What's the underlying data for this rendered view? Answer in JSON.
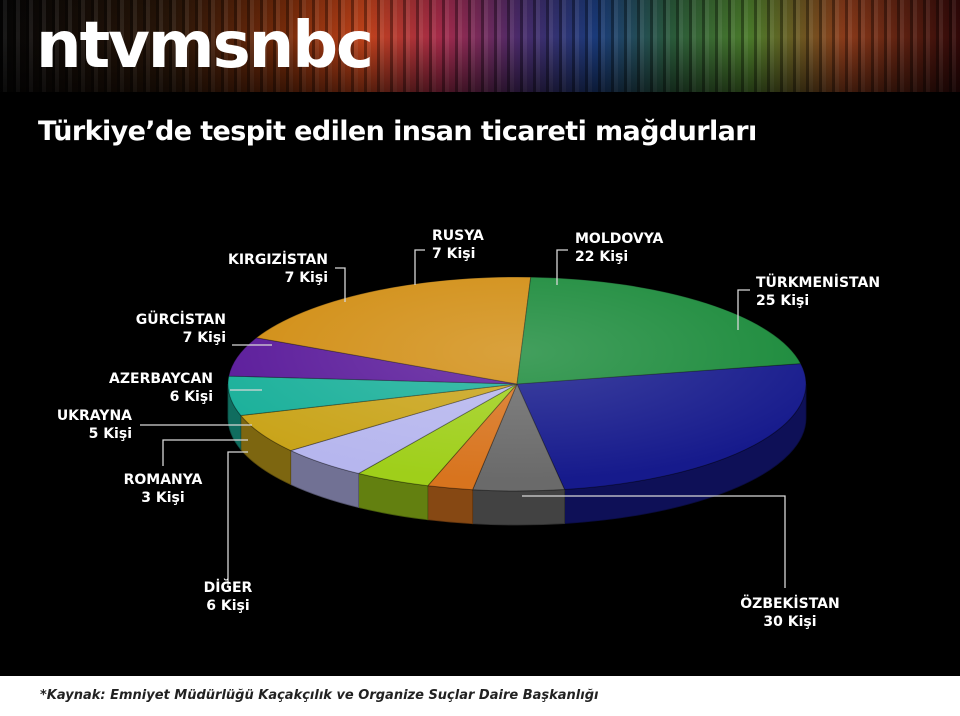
{
  "brand": {
    "logo_text": "ntvmsnbc"
  },
  "title": "Türkiye’de tespit edilen insan ticareti mağdurları",
  "source": "*Kaynak: Emniyet Müdürlüğü Kaçakçılık ve Organize Suçlar Daire Başkanlığı",
  "chart_data": {
    "type": "pie",
    "title": "Türkiye’de tespit edilen insan ticareti mağdurları",
    "unit": "Kişi",
    "slices": [
      {
        "label": "ÖZBEKİSTAN",
        "value_text": "30 Kişi",
        "value": 30,
        "color": "#161a8c"
      },
      {
        "label": "DİĞER",
        "value_text": "6 Kişi",
        "value": 6,
        "color": "#6a6a6a"
      },
      {
        "label": "ROMANYA",
        "value_text": "3 Kişi",
        "value": 3,
        "color": "#d8741e"
      },
      {
        "label": "UKRAYNA",
        "value_text": "5 Kişi",
        "value": 5,
        "color": "#9fcf1a"
      },
      {
        "label": "AZERBAYCAN",
        "value_text": "6 Kişi",
        "value": 6,
        "color": "#b6b6ee"
      },
      {
        "label": "GÜRCİSTAN",
        "value_text": "7 Kişi",
        "value": 7,
        "color": "#c9a41a"
      },
      {
        "label": "KIRGIZİSTAN",
        "value_text": "7 Kişi",
        "value": 7,
        "color": "#1ab09a"
      },
      {
        "label": "RUSYA",
        "value_text": "7 Kişi",
        "value": 7,
        "color": "#5a1a9a"
      },
      {
        "label": "MOLDOVYA",
        "value_text": "22 Kişi",
        "value": 22,
        "color": "#d18d12"
      },
      {
        "label": "TÜRKMENİSTAN",
        "value_text": "25 Kişi",
        "value": 25,
        "color": "#1a8a3a"
      }
    ]
  }
}
